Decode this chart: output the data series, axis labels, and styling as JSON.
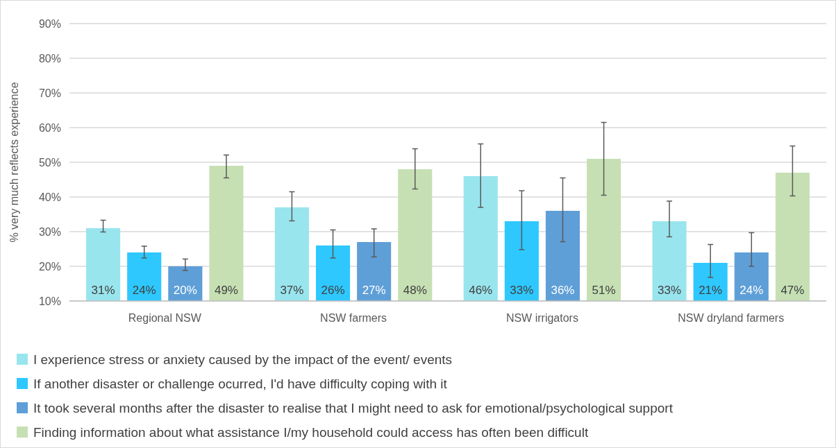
{
  "chart_data": {
    "type": "bar",
    "ylabel": "% very much reflects experience",
    "categories": [
      "Regional NSW",
      "NSW farmers",
      "NSW irrigators",
      "NSW dryland farmers"
    ],
    "series": [
      {
        "name": "I experience stress or anxiety caused by the impact of the event/ events",
        "color": "#99e5ee",
        "values": [
          31,
          37,
          46,
          33
        ],
        "value_labels": [
          "31%",
          "37%",
          "46%",
          "33%"
        ],
        "errors": [
          [
            29.9,
            33.3
          ],
          [
            33.1,
            41.5
          ],
          [
            37,
            55.3
          ],
          [
            28.5,
            38.8
          ]
        ]
      },
      {
        "name": "If another disaster or challenge ocurred, I'd have difficulty coping with it",
        "color": "#2ec8ff",
        "values": [
          24,
          26,
          33,
          21
        ],
        "value_labels": [
          "24%",
          "26%",
          "33%",
          "21%"
        ],
        "errors": [
          [
            22.4,
            25.8
          ],
          [
            22.4,
            30.5
          ],
          [
            24.8,
            41.8
          ],
          [
            16.8,
            26.3
          ]
        ]
      },
      {
        "name": "It took several months after the disaster to realise that I might need to ask for emotional/psychological support",
        "color": "#5f9fd8",
        "values": [
          20,
          27,
          36,
          24
        ],
        "value_labels": [
          "20%",
          "27%",
          "36%",
          "24%"
        ],
        "errors": [
          [
            18.8,
            22.1
          ],
          [
            22.7,
            30.8
          ],
          [
            27.1,
            45.5
          ],
          [
            20,
            29.7
          ]
        ]
      },
      {
        "name": "Finding information about what assistance I/my household could access has often been difficult",
        "color": "#c6e0b4",
        "values": [
          49,
          48,
          51,
          47
        ],
        "value_labels": [
          "49%",
          "48%",
          "51%",
          "47%"
        ],
        "errors": [
          [
            45.5,
            52.1
          ],
          [
            42.3,
            53.9
          ],
          [
            40.5,
            61.5
          ],
          [
            40.3,
            54.7
          ]
        ]
      }
    ],
    "ylim": [
      10,
      90
    ],
    "yticks": [
      {
        "value": 10,
        "label": "10%"
      },
      {
        "value": 20,
        "label": "20%"
      },
      {
        "value": 30,
        "label": "30%"
      },
      {
        "value": 40,
        "label": "40%"
      },
      {
        "value": 50,
        "label": "50%"
      },
      {
        "value": 60,
        "label": "60%"
      },
      {
        "value": 70,
        "label": "70%"
      },
      {
        "value": 80,
        "label": "80%"
      },
      {
        "value": 90,
        "label": "90%"
      }
    ],
    "grid": "y",
    "legend": "bottom"
  }
}
